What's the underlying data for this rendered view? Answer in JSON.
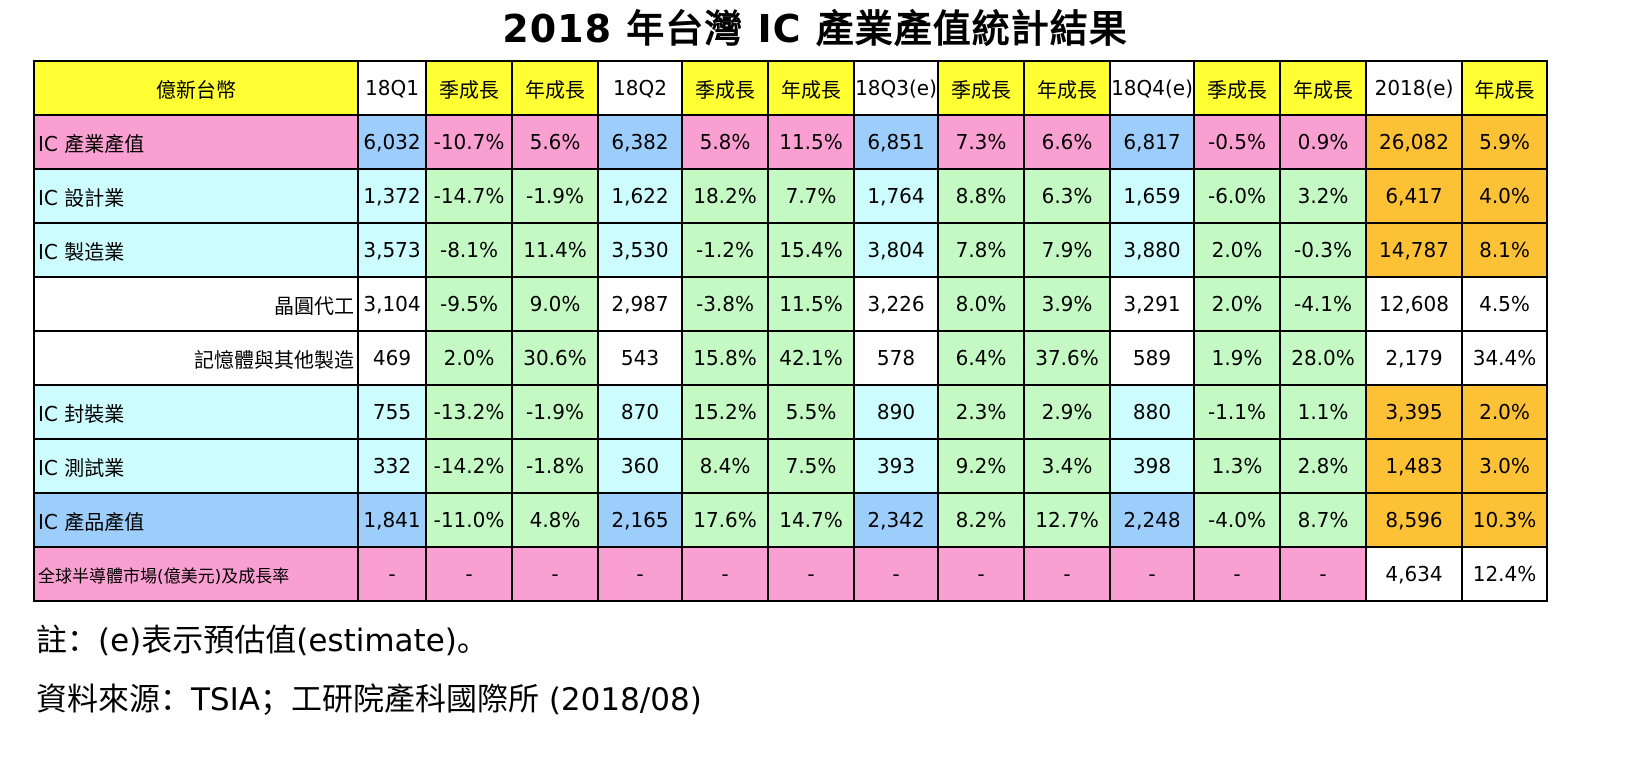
{
  "chart_data": {
    "type": "table",
    "title": "2018 年台灣 IC 產業產值統計結果",
    "unit": "億新台幣",
    "columns": [
      "18Q1",
      "季成長",
      "年成長",
      "18Q2",
      "季成長",
      "年成長",
      "18Q3(e)",
      "季成長",
      "年成長",
      "18Q4(e)",
      "季成長",
      "年成長",
      "2018(e)",
      "年成長"
    ],
    "rows": [
      {
        "label": "IC 產業產值",
        "indent": false,
        "values": [
          "6,032",
          "-10.7%",
          "5.6%",
          "6,382",
          "5.8%",
          "11.5%",
          "6,851",
          "7.3%",
          "6.6%",
          "6,817",
          "-0.5%",
          "0.9%",
          "26,082",
          "5.9%"
        ]
      },
      {
        "label": "IC 設計業",
        "indent": false,
        "values": [
          "1,372",
          "-14.7%",
          "-1.9%",
          "1,622",
          "18.2%",
          "7.7%",
          "1,764",
          "8.8%",
          "6.3%",
          "1,659",
          "-6.0%",
          "3.2%",
          "6,417",
          "4.0%"
        ]
      },
      {
        "label": "IC 製造業",
        "indent": false,
        "values": [
          "3,573",
          "-8.1%",
          "11.4%",
          "3,530",
          "-1.2%",
          "15.4%",
          "3,804",
          "7.8%",
          "7.9%",
          "3,880",
          "2.0%",
          "-0.3%",
          "14,787",
          "8.1%"
        ]
      },
      {
        "label": "晶圓代工",
        "indent": true,
        "values": [
          "3,104",
          "-9.5%",
          "9.0%",
          "2,987",
          "-3.8%",
          "11.5%",
          "3,226",
          "8.0%",
          "3.9%",
          "3,291",
          "2.0%",
          "-4.1%",
          "12,608",
          "4.5%"
        ]
      },
      {
        "label": "記憶體與其他製造",
        "indent": true,
        "values": [
          "469",
          "2.0%",
          "30.6%",
          "543",
          "15.8%",
          "42.1%",
          "578",
          "6.4%",
          "37.6%",
          "589",
          "1.9%",
          "28.0%",
          "2,179",
          "34.4%"
        ]
      },
      {
        "label": "IC 封裝業",
        "indent": false,
        "values": [
          "755",
          "-13.2%",
          "-1.9%",
          "870",
          "15.2%",
          "5.5%",
          "890",
          "2.3%",
          "2.9%",
          "880",
          "-1.1%",
          "1.1%",
          "3,395",
          "2.0%"
        ]
      },
      {
        "label": "IC 測試業",
        "indent": false,
        "values": [
          "332",
          "-14.2%",
          "-1.8%",
          "360",
          "8.4%",
          "7.5%",
          "393",
          "9.2%",
          "3.4%",
          "398",
          "1.3%",
          "2.8%",
          "1,483",
          "3.0%"
        ]
      },
      {
        "label": "IC 產品產值",
        "indent": false,
        "values": [
          "1,841",
          "-11.0%",
          "4.8%",
          "2,165",
          "17.6%",
          "14.7%",
          "2,342",
          "8.2%",
          "12.7%",
          "2,248",
          "-4.0%",
          "8.7%",
          "8,596",
          "10.3%"
        ]
      },
      {
        "label": "全球半導體市場(億美元)及成長率",
        "indent": false,
        "values": [
          "-",
          "-",
          "-",
          "-",
          "-",
          "-",
          "-",
          "-",
          "-",
          "-",
          "-",
          "-",
          "4,634",
          "12.4%"
        ]
      }
    ],
    "colors": {
      "yellow": "#ffff33",
      "white": "#ffffff",
      "pink": "#fa9fd1",
      "blue": "#9dcdfb",
      "cyan": "#ccfcfd",
      "green": "#c4f9c4",
      "orange": "#fdc136"
    },
    "header_colors": [
      "yellow",
      "white",
      "yellow",
      "yellow",
      "white",
      "yellow",
      "yellow",
      "white",
      "yellow",
      "yellow",
      "white",
      "yellow",
      "yellow",
      "white",
      "yellow"
    ],
    "row_colors": [
      [
        "pink",
        "blue",
        "pink",
        "pink",
        "blue",
        "pink",
        "pink",
        "blue",
        "pink",
        "pink",
        "blue",
        "pink",
        "pink",
        "orange",
        "orange"
      ],
      [
        "cyan",
        "cyan",
        "green",
        "green",
        "cyan",
        "green",
        "green",
        "cyan",
        "green",
        "green",
        "cyan",
        "green",
        "green",
        "orange",
        "orange"
      ],
      [
        "cyan",
        "cyan",
        "green",
        "green",
        "cyan",
        "green",
        "green",
        "cyan",
        "green",
        "green",
        "cyan",
        "green",
        "green",
        "orange",
        "orange"
      ],
      [
        "white",
        "white",
        "green",
        "green",
        "white",
        "green",
        "green",
        "white",
        "green",
        "green",
        "white",
        "green",
        "green",
        "white",
        "white"
      ],
      [
        "white",
        "white",
        "green",
        "green",
        "white",
        "green",
        "green",
        "white",
        "green",
        "green",
        "white",
        "green",
        "green",
        "white",
        "white"
      ],
      [
        "cyan",
        "cyan",
        "green",
        "green",
        "cyan",
        "green",
        "green",
        "cyan",
        "green",
        "green",
        "cyan",
        "green",
        "green",
        "orange",
        "orange"
      ],
      [
        "cyan",
        "cyan",
        "green",
        "green",
        "cyan",
        "green",
        "green",
        "cyan",
        "green",
        "green",
        "cyan",
        "green",
        "green",
        "orange",
        "orange"
      ],
      [
        "blue",
        "blue",
        "green",
        "green",
        "blue",
        "green",
        "green",
        "blue",
        "green",
        "green",
        "blue",
        "green",
        "green",
        "orange",
        "orange"
      ],
      [
        "pink",
        "pink",
        "pink",
        "pink",
        "pink",
        "pink",
        "pink",
        "pink",
        "pink",
        "pink",
        "pink",
        "pink",
        "pink",
        "white",
        "white"
      ]
    ]
  },
  "notes": {
    "note": "註：(e)表示預估值(estimate)。",
    "source": "資料來源：TSIA；工研院產科國際所  (2018/08)"
  }
}
